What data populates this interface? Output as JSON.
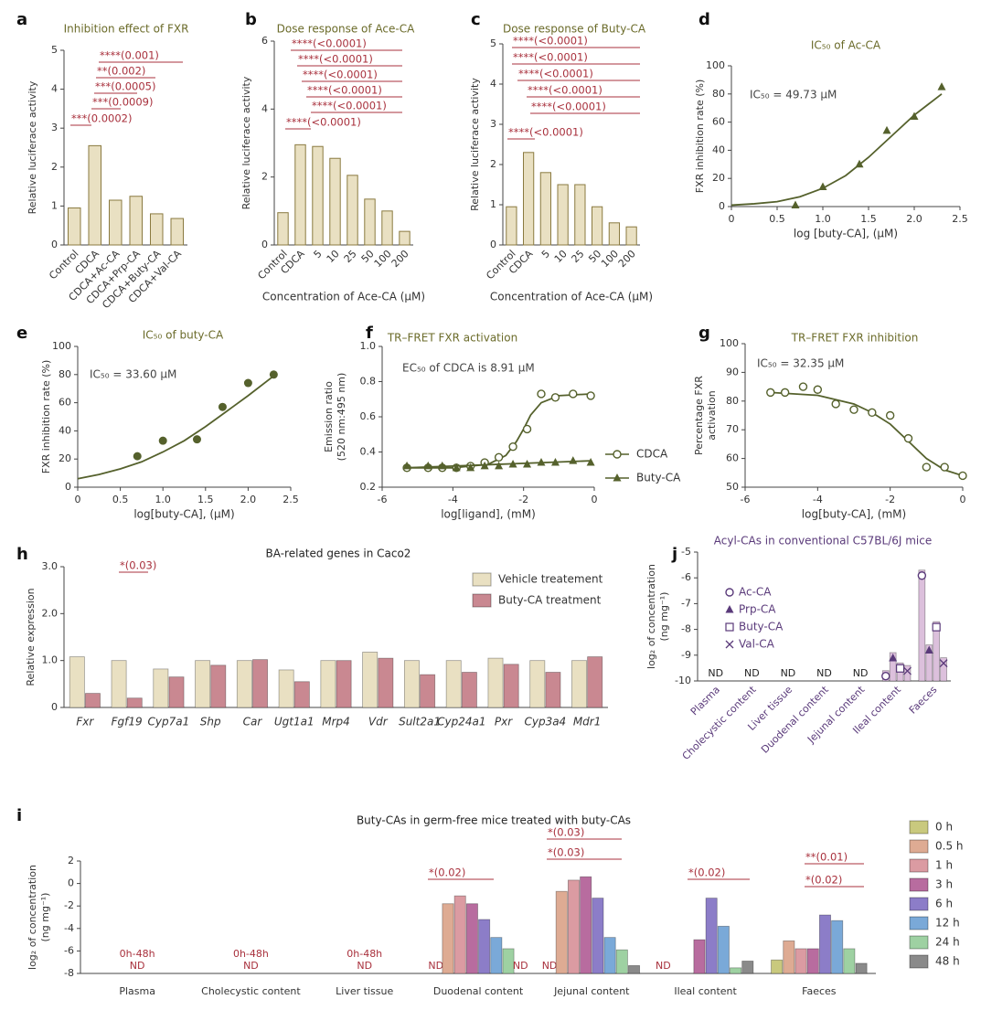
{
  "chart_data": [
    {
      "type": "bar",
      "panel": "a",
      "title": "Inhibition effect of FXR",
      "title_color": "#6b6b2a",
      "ylabel": "Relative luciferace activity",
      "categories": [
        "Control",
        "CDCA",
        "CDCA+Ac-CA",
        "CDCA+Prp-CA",
        "CDCA+Buty-CA",
        "CDCA+Val-CA"
      ],
      "values": [
        0.95,
        2.55,
        1.15,
        1.25,
        0.8,
        0.68
      ],
      "color": "#e9e0c2",
      "edge": "#8a7a40",
      "rotate_labels": true,
      "ylim": [
        0,
        5
      ],
      "yticks": [
        0,
        1,
        2,
        3,
        4,
        5
      ],
      "annotations": [
        "****(0.001)",
        "**(0.002)",
        "***(0.0005)",
        "***(0.0009)",
        "***(0.0002)"
      ],
      "annotation_color": "#a8303c"
    },
    {
      "type": "bar",
      "panel": "b",
      "title": "Dose response of Ace-CA",
      "title_color": "#6b6b2a",
      "ylabel": "Relative luciferace activity",
      "xlabel": "Concentration of Ace-CA (μM)",
      "categories": [
        "Control",
        "CDCA",
        "5",
        "10",
        "25",
        "50",
        "100",
        "200"
      ],
      "values": [
        0.95,
        2.95,
        2.9,
        2.55,
        2.05,
        1.35,
        1.0,
        0.4
      ],
      "color": "#e9e0c2",
      "edge": "#8a7a40",
      "rotate_labels": true,
      "ylim": [
        0,
        6
      ],
      "yticks": [
        0,
        2,
        4,
        6
      ],
      "annotations": [
        "****(<0.0001)",
        "****(<0.0001)",
        "****(<0.0001)",
        "****(<0.0001)",
        "****(<0.0001)",
        "****(<0.0001)"
      ],
      "annotation_color": "#a8303c"
    },
    {
      "type": "bar",
      "panel": "c",
      "title": "Dose response of Buty-CA",
      "title_color": "#6b6b2a",
      "ylabel": "Relative luciferace activity",
      "xlabel": "Concentration of Ace-CA (μM)",
      "categories": [
        "Control",
        "CDCA",
        "5",
        "10",
        "25",
        "50",
        "100",
        "200"
      ],
      "values": [
        0.95,
        2.3,
        1.8,
        1.5,
        1.5,
        0.95,
        0.55,
        0.45
      ],
      "color": "#e9e0c2",
      "edge": "#8a7a40",
      "rotate_labels": true,
      "ylim": [
        0,
        5
      ],
      "yticks": [
        0,
        1,
        2,
        3,
        4,
        5
      ],
      "annotations": [
        "****(<0.0001)",
        "****(<0.0001)",
        "****(<0.0001)",
        "****(<0.0001)",
        "****(<0.0001)",
        "****(<0.0001)"
      ],
      "annotation_color": "#a8303c"
    },
    {
      "type": "scatter",
      "panel": "d",
      "title": "IC₅₀ of Ac-CA",
      "title_color": "#6b6b2a",
      "ylabel": "FXR inhibition rate (%)",
      "xlabel": "log [buty-CA], (μM)",
      "note": "IC₅₀ = 49.73 μM",
      "xlim": [
        0,
        2.5
      ],
      "xticks": [
        0,
        0.5,
        {
          "value": 1,
          "label": "1.0"
        },
        1.5,
        {
          "value": 2,
          "label": "2.0"
        },
        2.5
      ],
      "ylim": [
        0,
        100
      ],
      "yticks": [
        0,
        20,
        40,
        60,
        80,
        100
      ],
      "series": [
        {
          "color": "#55612c",
          "marker": "triangle",
          "x": [
            0.7,
            1,
            1.4,
            1.7,
            2,
            2.3
          ],
          "values": [
            1,
            14,
            30,
            54,
            64,
            85
          ],
          "curve": {
            "x": [
              0,
              0.25,
              0.5,
              0.75,
              1,
              1.25,
              1.5,
              1.75,
              2,
              2.3
            ],
            "y": [
              1,
              2,
              3.5,
              7,
              13,
              22,
              35,
              50,
              65,
              80
            ]
          }
        }
      ]
    },
    {
      "type": "scatter",
      "panel": "e",
      "title": "IC₅₀ of buty-CA",
      "title_color": "#6b6b2a",
      "ylabel": "FXR inhibition rate (%)",
      "xlabel": "log[buty-CA], (μM)",
      "note": "IC₅₀ = 33.60 μM",
      "xlim": [
        0,
        2.5
      ],
      "xticks": [
        0,
        0.5,
        {
          "value": 1,
          "label": "1.0"
        },
        1.5,
        {
          "value": 2,
          "label": "2.0"
        },
        2.5
      ],
      "ylim": [
        0,
        100
      ],
      "yticks": [
        0,
        20,
        40,
        60,
        80,
        100
      ],
      "series": [
        {
          "color": "#55612c",
          "marker": "circle",
          "x": [
            0.7,
            1,
            1.4,
            1.7,
            2,
            2.3
          ],
          "values": [
            22,
            33,
            34,
            57,
            74,
            80
          ],
          "curve": {
            "x": [
              0,
              0.25,
              0.5,
              0.75,
              1,
              1.25,
              1.5,
              1.75,
              2,
              2.3
            ],
            "y": [
              6,
              9,
              13,
              18,
              25,
              33,
              43,
              54,
              65,
              79
            ]
          }
        }
      ]
    },
    {
      "type": "scatter",
      "panel": "f",
      "title": "TR–FRET FXR activation",
      "title_color": "#6b6b2a",
      "ylabel": [
        "Emission ratio",
        "(520 nm:495 nm)"
      ],
      "xlabel": "log[ligand], (mM)",
      "note": "EC₅₀ of CDCA is 8.91 μM",
      "xlim": [
        -6,
        0
      ],
      "xticks": [
        -6,
        -4,
        -2,
        0
      ],
      "ylim": [
        0.2,
        1.0
      ],
      "yticks": [
        0.2,
        0.4,
        0.6,
        0.8,
        {
          "value": 1,
          "label": "1.0"
        }
      ],
      "series": [
        {
          "name": "CDCA",
          "color": "#55612c",
          "marker": "open-circle",
          "x": [
            -5.3,
            -4.7,
            -4.3,
            -3.9,
            -3.5,
            -3.1,
            -2.7,
            -2.3,
            -1.9,
            -1.5,
            -1.1,
            -0.6,
            -0.1
          ],
          "values": [
            0.31,
            0.31,
            0.31,
            0.31,
            0.32,
            0.34,
            0.37,
            0.43,
            0.53,
            0.73,
            0.71,
            0.73,
            0.72
          ],
          "curve": {
            "x": [
              -5.3,
              -4,
              -3,
              -2.5,
              -2.2,
              -2,
              -1.8,
              -1.5,
              -1,
              -0.1
            ],
            "y": [
              0.31,
              0.31,
              0.33,
              0.38,
              0.46,
              0.53,
              0.61,
              0.68,
              0.72,
              0.73
            ]
          }
        },
        {
          "name": "Buty-CA",
          "color": "#55612c",
          "marker": "triangle",
          "x": [
            -5.3,
            -4.7,
            -4.3,
            -3.9,
            -3.5,
            -3.1,
            -2.7,
            -2.3,
            -1.9,
            -1.5,
            -1.1,
            -0.6,
            -0.1
          ],
          "values": [
            0.32,
            0.32,
            0.32,
            0.31,
            0.31,
            0.32,
            0.32,
            0.33,
            0.33,
            0.34,
            0.34,
            0.35,
            0.34
          ],
          "curve": {
            "x": [
              -5.3,
              -0.1
            ],
            "y": [
              0.31,
              0.35
            ]
          }
        }
      ]
    },
    {
      "type": "scatter",
      "panel": "g",
      "title": "TR–FRET FXR inhibition",
      "title_color": "#6b6b2a",
      "ylabel": [
        "Percentage FXR",
        "activation"
      ],
      "xlabel": "log[buty-CA], (mM)",
      "note": "IC₅₀ = 32.35 μM",
      "xlim": [
        -6,
        0
      ],
      "xticks": [
        -6,
        -4,
        -2,
        0
      ],
      "ylim": [
        50,
        100
      ],
      "yticks": [
        50,
        60,
        70,
        80,
        90,
        100
      ],
      "series": [
        {
          "color": "#55612c",
          "marker": "open-circle",
          "x": [
            -5.3,
            -4.9,
            -4.4,
            -4.0,
            -3.5,
            -3.0,
            -2.5,
            -2.0,
            -1.5,
            -1.0,
            -0.5,
            0
          ],
          "values": [
            83,
            83,
            85,
            84,
            79,
            77,
            76,
            75,
            67,
            57,
            57,
            54
          ],
          "curve": {
            "x": [
              -5.3,
              -4,
              -3,
              -2.5,
              -2,
              -1.5,
              -1,
              -0.5,
              0
            ],
            "y": [
              83,
              82,
              79,
              76,
              72,
              66,
              60,
              56,
              54
            ]
          }
        }
      ]
    },
    {
      "type": "bar",
      "panel": "h",
      "title": "BA-related genes in Caco2",
      "title_color": "#222222",
      "ylabel": "Relative expression",
      "italic_labels": true,
      "categories": [
        "Fxr",
        "Fgf19",
        "Cyp7a1",
        "Shp",
        "Car",
        "Ugt1a1",
        "Mrp4",
        "Vdr",
        "Sult2a1",
        "Cyp24a1",
        "Pxr",
        "Cyp3a4",
        "Mdr1"
      ],
      "series": [
        {
          "name": "Vehicle treatement",
          "color": "#e9e0c2",
          "values": [
            1.08,
            1.0,
            0.82,
            1.0,
            1.0,
            0.8,
            1.0,
            1.18,
            1.0,
            1.0,
            1.05,
            1.0,
            1.0
          ]
        },
        {
          "name": "Buty-CA treatment",
          "color": "#c98891",
          "values": [
            0.3,
            0.2,
            0.65,
            0.9,
            1.02,
            0.55,
            1.0,
            1.05,
            0.7,
            0.75,
            0.92,
            0.75,
            1.08
          ]
        }
      ],
      "ylim": [
        0,
        3
      ],
      "yticks": [
        0,
        {
          "value": 1,
          "label": "1.0"
        },
        {
          "value": 2,
          "label": "2.0"
        },
        {
          "value": 3,
          "label": "3.0"
        }
      ],
      "annotations": [
        "*(0.03)"
      ],
      "annotation_color": "#a8303c"
    },
    {
      "type": "bar",
      "panel": "j",
      "title": "Acyl-CAs in conventional C57BL/6J mice",
      "title_color": "#5a3a7a",
      "ylabel": [
        "log₂ of concentration",
        "(ng mg⁻¹)"
      ],
      "rotate_labels": true,
      "label_color": "#5a3a7a",
      "categories": [
        "Plasma",
        "Cholecystic content",
        "Liver tissue",
        "Duodenal content",
        "Jejunal content",
        "Ileal content",
        "Faeces"
      ],
      "nd_labels": [
        "ND",
        "ND",
        "ND",
        "ND",
        "ND",
        null,
        null
      ],
      "nd_color": "#222222",
      "series": [
        {
          "name": "Ac-CA",
          "color": "#dcc0dc",
          "marker": "open-circle",
          "values": [
            null,
            null,
            null,
            null,
            null,
            -9.6,
            -5.7
          ]
        },
        {
          "name": "Prp-CA",
          "color": "#dcc0dc",
          "marker": "triangle",
          "values": [
            null,
            null,
            null,
            null,
            null,
            -8.9,
            -8.6
          ]
        },
        {
          "name": "Buty-CA",
          "color": "#dcc0dc",
          "marker": "square",
          "values": [
            null,
            null,
            null,
            null,
            null,
            -9.3,
            -7.7
          ]
        },
        {
          "name": "Val-CA",
          "color": "#dcc0dc",
          "marker": "cross",
          "values": [
            null,
            null,
            null,
            null,
            null,
            -9.4,
            -9.1
          ]
        }
      ],
      "ylim": [
        -10,
        -5
      ],
      "yticks": [
        -10,
        -9,
        -8,
        -7,
        -6,
        -5
      ]
    },
    {
      "type": "bar",
      "panel": "i",
      "title": "Buty-CAs in germ-free mice treated with buty-CAs",
      "title_color": "#222222",
      "ylabel": [
        "log₂ of concentration",
        "(ng mg⁻¹)"
      ],
      "categories": [
        "Plasma",
        "Cholecystic content",
        "Liver tissue",
        "Duodenal content",
        "Jejunal content",
        "Ileal content",
        "Faeces"
      ],
      "group_labels": [
        "0h-48h",
        "0h-48h",
        "0h-48h",
        null,
        null,
        null,
        null
      ],
      "nd_labels": [
        "ND",
        "ND",
        "ND",
        null,
        null,
        null,
        null
      ],
      "nd_color": "#a8303c",
      "series": [
        {
          "name": "0 h",
          "color": "#c9c97e",
          "values": [
            null,
            null,
            null,
            null,
            null,
            null,
            -6.8
          ],
          "value_labels": [
            null,
            null,
            null,
            "ND",
            "ND",
            "ND",
            null
          ]
        },
        {
          "name": "0.5 h",
          "color": "#deab93",
          "values": [
            null,
            null,
            null,
            -1.8,
            -0.7,
            null,
            -5.1
          ]
        },
        {
          "name": "1 h",
          "color": "#db9ba2",
          "values": [
            null,
            null,
            null,
            -1.1,
            0.3,
            null,
            -5.8
          ]
        },
        {
          "name": "3 h",
          "color": "#b86c9f",
          "values": [
            null,
            null,
            null,
            -1.8,
            0.6,
            -5.0,
            -5.8
          ]
        },
        {
          "name": "6 h",
          "color": "#8c7dc8",
          "values": [
            null,
            null,
            null,
            -3.2,
            -1.3,
            -1.3,
            -2.8
          ]
        },
        {
          "name": "12 h",
          "color": "#7aa9d8",
          "values": [
            null,
            null,
            null,
            -4.8,
            -4.8,
            -3.8,
            -3.3
          ]
        },
        {
          "name": "24 h",
          "color": "#9ed1a2",
          "values": [
            null,
            null,
            null,
            -5.8,
            -5.9,
            -7.5,
            -5.8
          ]
        },
        {
          "name": "48 h",
          "color": "#8a8a8a",
          "values": [
            null,
            null,
            null,
            null,
            -7.3,
            -6.9,
            -7.1
          ],
          "value_labels": [
            null,
            null,
            null,
            "ND",
            null,
            null,
            null
          ]
        }
      ],
      "ylim": [
        -8,
        2
      ],
      "yticks": [
        -8,
        -6,
        -4,
        -2,
        0,
        2
      ],
      "annotations": [
        "*(0.02)",
        "*(0.03)",
        "*(0.03)",
        "*(0.02)",
        "**(0.01)",
        "*(0.02)"
      ],
      "annotation_color": "#a8303c"
    }
  ]
}
